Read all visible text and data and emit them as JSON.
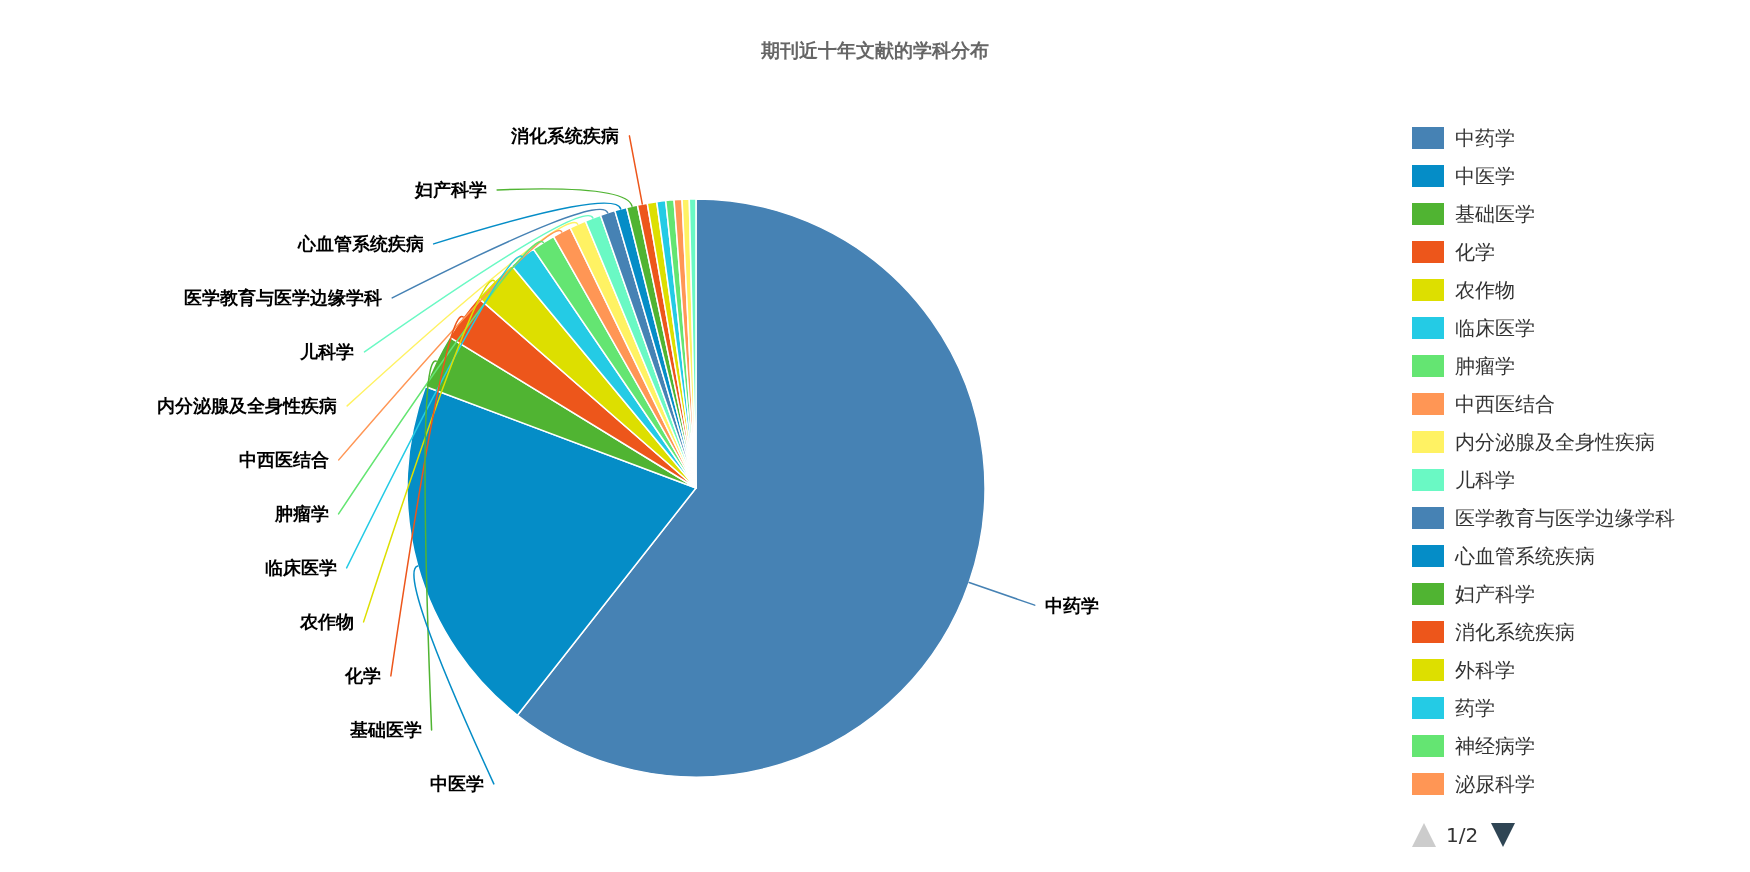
{
  "chart_data": {
    "type": "pie",
    "title": "期刊近十年文献的学科分布",
    "categories": [
      "中药学",
      "中医学",
      "基础医学",
      "化学",
      "农作物",
      "临床医学",
      "肿瘤学",
      "中西医结合",
      "内分泌腺及全身性疾病",
      "儿科学",
      "医学教育与医学边缘学科",
      "心血管系统疾病",
      "妇产科学",
      "消化系统疾病",
      "外科学",
      "药学",
      "神经病学",
      "泌尿科学",
      null,
      null
    ],
    "values": [
      60.6,
      20.11,
      3.03,
      2.69,
      2.56,
      1.5,
      1.31,
      1.03,
      0.92,
      0.89,
      0.83,
      0.67,
      0.61,
      0.55,
      0.53,
      0.5,
      0.46,
      0.44,
      0.4,
      0.37
    ],
    "colors": [
      "#4682b4",
      "#058dc7",
      "#50b432",
      "#ed561b",
      "#dddf00",
      "#24cbe5",
      "#64e572",
      "#ff9655",
      "#fff263",
      "#6af9c4",
      "#4682b4",
      "#058dc7",
      "#50b432",
      "#ed561b",
      "#dddf00",
      "#24cbe5",
      "#64e572",
      "#ff9655",
      "#fff263",
      "#6af9c4"
    ],
    "legend": "right",
    "annotations": [
      "1/2"
    ]
  }
}
